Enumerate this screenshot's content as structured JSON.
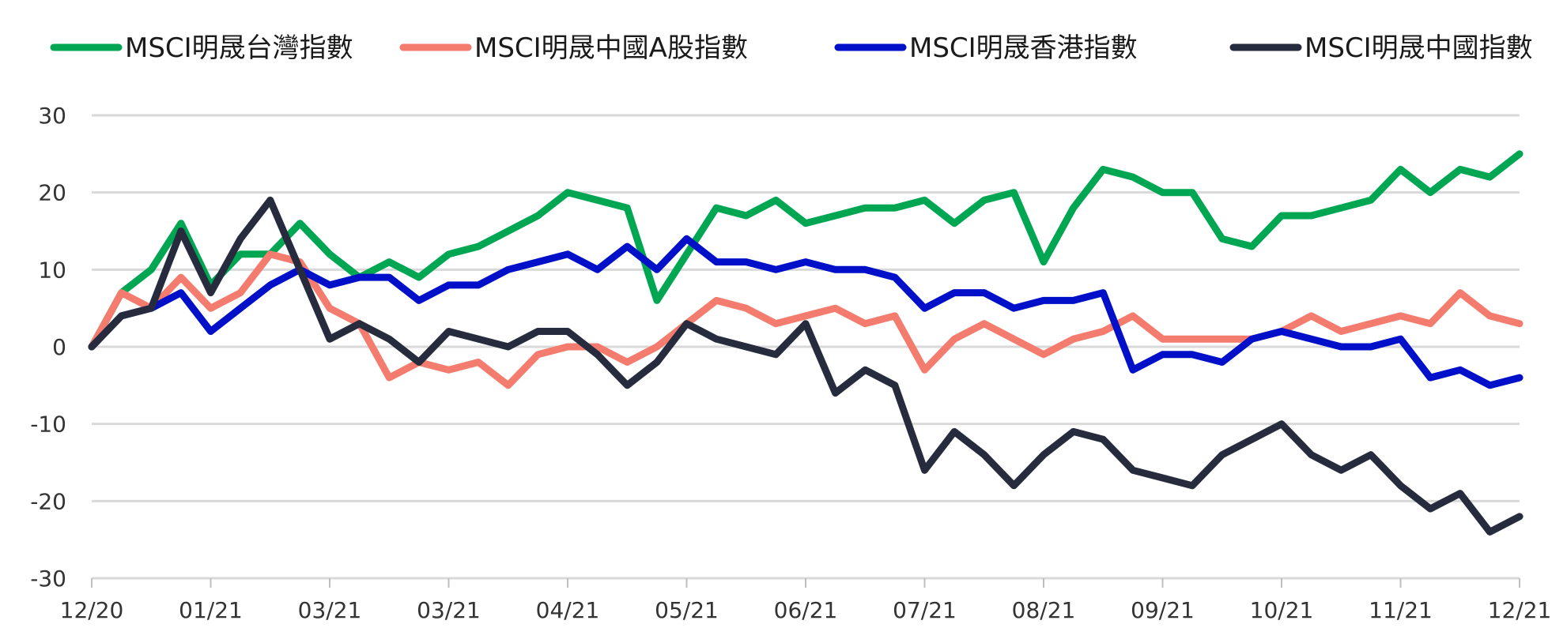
{
  "chart_data": {
    "type": "line",
    "title": "",
    "xlabel": "",
    "ylabel": "",
    "ylim": [
      -30,
      30
    ],
    "yticks": [
      30,
      20,
      10,
      0,
      -10,
      -20,
      -30
    ],
    "ytick_labels": [
      "30",
      "20",
      "10",
      "0",
      "-10",
      "-20",
      "-30"
    ],
    "xlim": [
      0,
      12
    ],
    "xticks": [
      0,
      1,
      2,
      3,
      4,
      5,
      6,
      7,
      8,
      9,
      10,
      11,
      12
    ],
    "xtick_labels": [
      "12/20",
      "01/21",
      "03/21",
      "03/21",
      "04/21",
      "05/21",
      "06/21",
      "07/21",
      "08/21",
      "09/21",
      "10/21",
      "11/21",
      "12/21"
    ],
    "grid": true,
    "legend_position": "top",
    "series": [
      {
        "name": "MSCI明晟台灣指數",
        "color": "#00a651",
        "x": [
          0,
          0.25,
          0.5,
          0.75,
          1.0,
          1.25,
          1.5,
          1.75,
          2.0,
          2.25,
          2.5,
          2.75,
          3.0,
          3.25,
          3.5,
          3.75,
          4.0,
          4.25,
          4.5,
          4.75,
          5.0,
          5.25,
          5.5,
          5.75,
          6.0,
          6.25,
          6.5,
          6.75,
          7.0,
          7.25,
          7.5,
          7.75,
          8.0,
          8.25,
          8.5,
          8.75,
          9.0,
          9.25,
          9.5,
          9.75,
          10.0,
          10.25,
          10.5,
          10.75,
          11.0,
          11.25,
          11.5,
          11.75,
          12.0
        ],
        "values": [
          0,
          7,
          10,
          16,
          8,
          12,
          12,
          16,
          12,
          9,
          11,
          9,
          12,
          13,
          15,
          17,
          20,
          19,
          18,
          6,
          12,
          18,
          17,
          19,
          16,
          17,
          18,
          18,
          19,
          16,
          19,
          20,
          11,
          18,
          23,
          22,
          20,
          20,
          14,
          13,
          17,
          17,
          18,
          19,
          23,
          20,
          23,
          22,
          25
        ]
      },
      {
        "name": "MSCI明晟中國A股指數",
        "color": "#f47c6f",
        "x": [
          0,
          0.25,
          0.5,
          0.75,
          1.0,
          1.25,
          1.5,
          1.75,
          2.0,
          2.25,
          2.5,
          2.75,
          3.0,
          3.25,
          3.5,
          3.75,
          4.0,
          4.25,
          4.5,
          4.75,
          5.0,
          5.25,
          5.5,
          5.75,
          6.0,
          6.25,
          6.5,
          6.75,
          7.0,
          7.25,
          7.5,
          7.75,
          8.0,
          8.25,
          8.5,
          8.75,
          9.0,
          9.25,
          9.5,
          9.75,
          10.0,
          10.25,
          10.5,
          10.75,
          11.0,
          11.25,
          11.5,
          11.75,
          12.0
        ],
        "values": [
          0,
          7,
          5,
          9,
          5,
          7,
          12,
          11,
          5,
          3,
          -4,
          -2,
          -3,
          -2,
          -5,
          -1,
          0,
          0,
          -2,
          0,
          3,
          6,
          5,
          3,
          4,
          5,
          3,
          4,
          -3,
          1,
          3,
          1,
          -1,
          1,
          2,
          4,
          1,
          1,
          1,
          1,
          2,
          4,
          2,
          3,
          4,
          3,
          7,
          4,
          3
        ]
      },
      {
        "name": "MSCI明晟香港指數",
        "color": "#0010c8",
        "x": [
          0,
          0.25,
          0.5,
          0.75,
          1.0,
          1.25,
          1.5,
          1.75,
          2.0,
          2.25,
          2.5,
          2.75,
          3.0,
          3.25,
          3.5,
          3.75,
          4.0,
          4.25,
          4.5,
          4.75,
          5.0,
          5.25,
          5.5,
          5.75,
          6.0,
          6.25,
          6.5,
          6.75,
          7.0,
          7.25,
          7.5,
          7.75,
          8.0,
          8.25,
          8.5,
          8.75,
          9.0,
          9.25,
          9.5,
          9.75,
          10.0,
          10.25,
          10.5,
          10.75,
          11.0,
          11.25,
          11.5,
          11.75,
          12.0
        ],
        "values": [
          0,
          4,
          5,
          7,
          2,
          5,
          8,
          10,
          8,
          9,
          9,
          6,
          8,
          8,
          10,
          11,
          12,
          10,
          13,
          10,
          14,
          11,
          11,
          10,
          11,
          10,
          10,
          9,
          5,
          7,
          7,
          5,
          6,
          6,
          7,
          -3,
          -1,
          -1,
          -2,
          1,
          2,
          1,
          0,
          0,
          1,
          -4,
          -3,
          -5,
          -4
        ]
      },
      {
        "name": "MSCI明晟中國指數",
        "color": "#262b3d",
        "x": [
          0,
          0.25,
          0.5,
          0.75,
          1.0,
          1.25,
          1.5,
          1.75,
          2.0,
          2.25,
          2.5,
          2.75,
          3.0,
          3.25,
          3.5,
          3.75,
          4.0,
          4.25,
          4.5,
          4.75,
          5.0,
          5.25,
          5.5,
          5.75,
          6.0,
          6.25,
          6.5,
          6.75,
          7.0,
          7.25,
          7.5,
          7.75,
          8.0,
          8.25,
          8.5,
          8.75,
          9.0,
          9.25,
          9.5,
          9.75,
          10.0,
          10.25,
          10.5,
          10.75,
          11.0,
          11.25,
          11.5,
          11.75,
          12.0
        ],
        "values": [
          0,
          4,
          5,
          15,
          7,
          14,
          19,
          10,
          1,
          3,
          1,
          -2,
          2,
          1,
          0,
          2,
          2,
          -1,
          -5,
          -2,
          3,
          1,
          0,
          -1,
          3,
          -6,
          -3,
          -5,
          -16,
          -11,
          -14,
          -18,
          -14,
          -11,
          -12,
          -16,
          -17,
          -18,
          -14,
          -12,
          -10,
          -14,
          -16,
          -14,
          -18,
          -21,
          -19,
          -24,
          -22
        ]
      }
    ]
  }
}
